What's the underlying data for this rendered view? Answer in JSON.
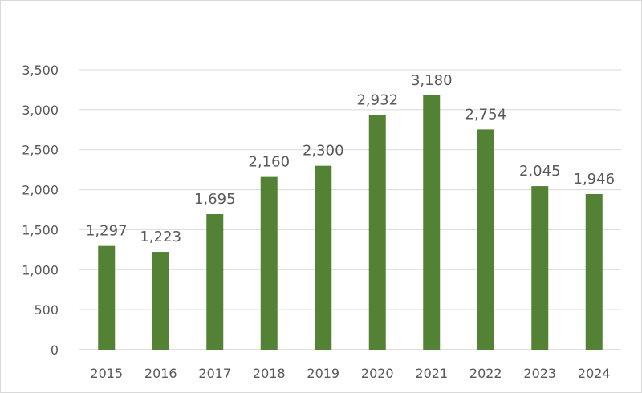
{
  "chart_data": {
    "type": "bar",
    "title": "",
    "xlabel": "",
    "ylabel": "",
    "categories": [
      "2015",
      "2016",
      "2017",
      "2018",
      "2019",
      "2020",
      "2021",
      "2022",
      "2023",
      "2024"
    ],
    "values": [
      1297,
      1223,
      1695,
      2160,
      2300,
      2932,
      3180,
      2754,
      2045,
      1946
    ],
    "data_labels": [
      "1,297",
      "1,223",
      "1,695",
      "2,160",
      "2,300",
      "2,932",
      "3,180",
      "2,754",
      "2,045",
      "1,946"
    ],
    "ylim": [
      0,
      3500
    ],
    "yticks": [
      0,
      500,
      1000,
      1500,
      2000,
      2500,
      3000,
      3500
    ],
    "ytick_labels": [
      "0",
      "500",
      "1,000",
      "1,500",
      "2,000",
      "2,500",
      "3,000",
      "3,500"
    ],
    "grid": true,
    "legend": "none",
    "bar_color": "#548235"
  }
}
